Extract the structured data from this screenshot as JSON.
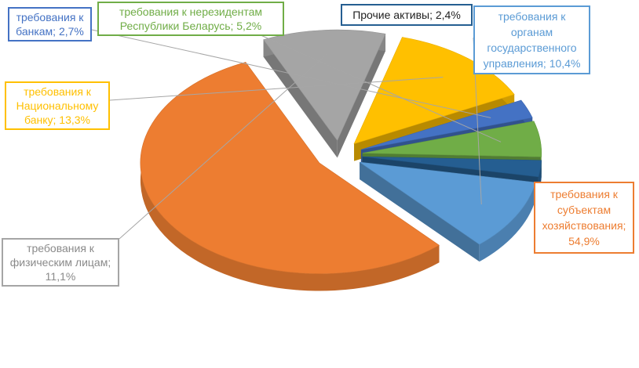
{
  "chart_data": {
    "type": "pie",
    "title": "",
    "style": "3d-exploded",
    "legend": "none",
    "series": [
      {
        "values": [
          54.9,
          11.1,
          13.3,
          2.7,
          5.2,
          2.4,
          10.4
        ],
        "labels": [
          "требования к субъектам хозяйствования; 54,9%",
          "требования к физическим лицам; 11,1%",
          "требования к Национальному банку; 13,3%",
          "требования к банкам; 2,7%",
          "требования к нерезидентам Республики Беларусь; 5,2%",
          "Прочие активы; 2,4%",
          "требования к органам государственного управления; 10,4%"
        ],
        "colors": [
          "#ED7D31",
          "#A5A5A5",
          "#FFC000",
          "#4472C4",
          "#70AD47",
          "#255E91",
          "#5B9BD5"
        ]
      }
    ]
  }
}
